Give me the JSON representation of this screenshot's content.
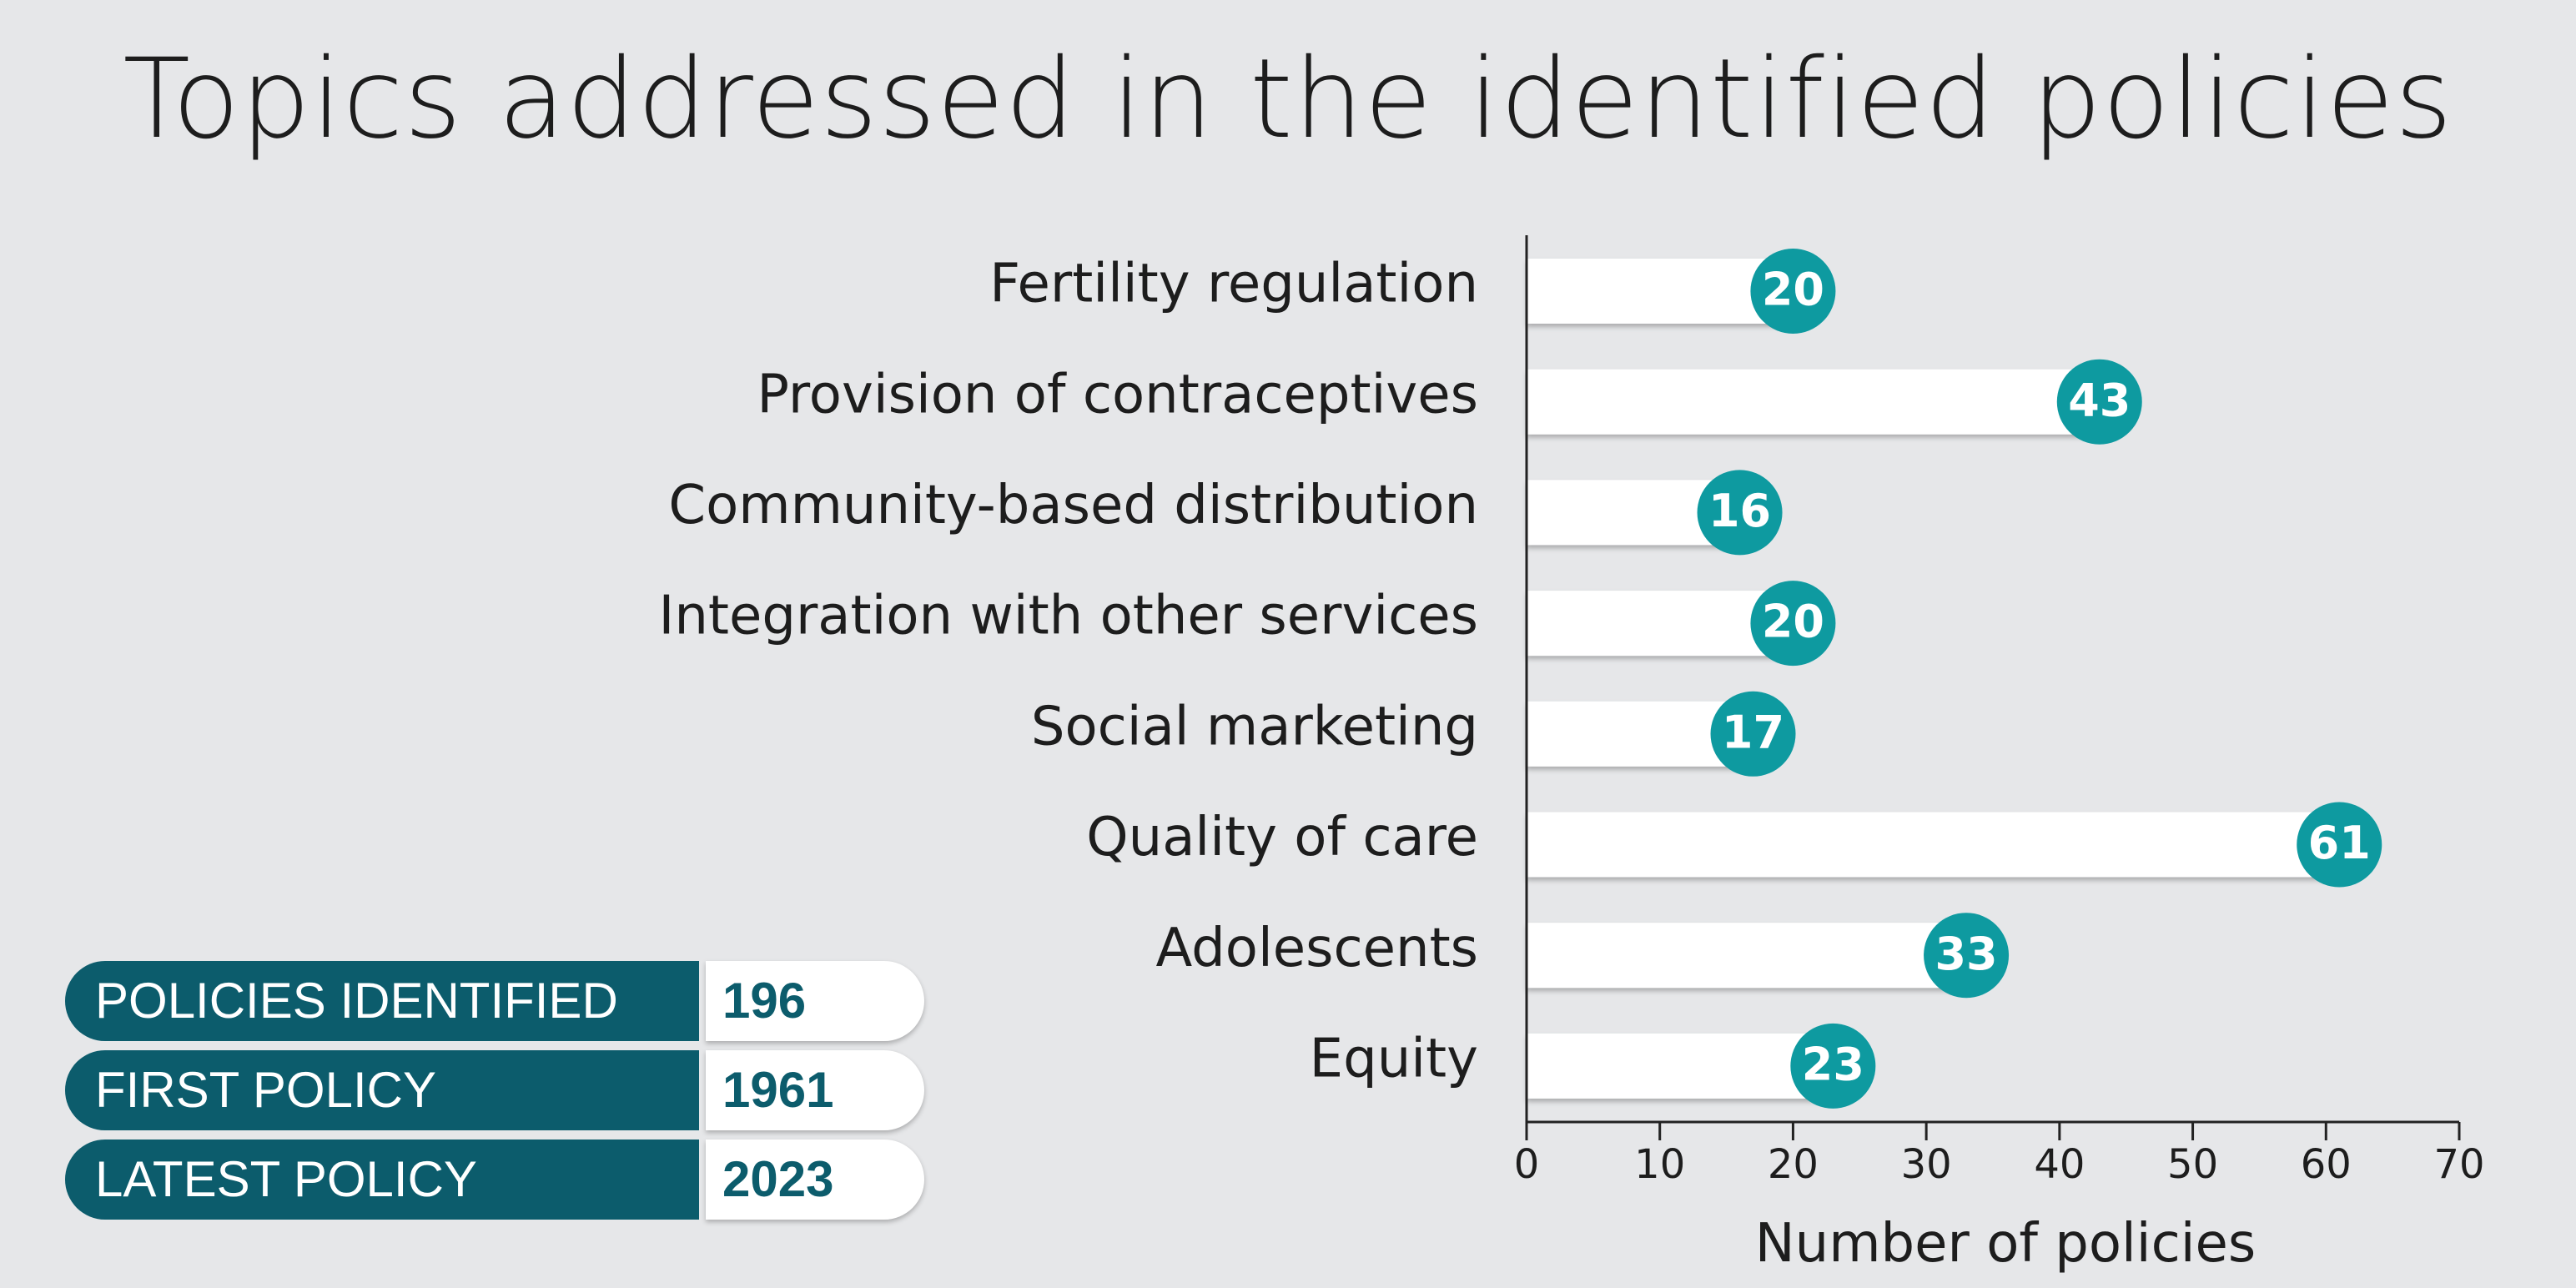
{
  "chart_data": {
    "type": "bar",
    "orientation": "horizontal",
    "title": "Topics addressed in the identified policies",
    "categories": [
      "Fertility regulation",
      "Provision of contraceptives",
      "Community-based distribution",
      "Integration with other services",
      "Social marketing",
      "Quality of care",
      "Adolescents",
      "Equity"
    ],
    "values": [
      20,
      43,
      16,
      20,
      17,
      61,
      33,
      23
    ],
    "xlabel": "Number of policies",
    "xlim": [
      0,
      70
    ],
    "xticks": [
      "0",
      "10",
      "20",
      "30",
      "40",
      "50",
      "60",
      "70"
    ],
    "grid": false,
    "bar_color": "#ffffff",
    "marker_color": "#0e9aa0"
  },
  "stats": [
    {
      "label": "POLICIES IDENTIFIED",
      "value": "196"
    },
    {
      "label": "FIRST POLICY",
      "value": "1961"
    },
    {
      "label": "LATEST POLICY",
      "value": "2023"
    }
  ],
  "colors": {
    "background": "#e6e7e9",
    "dark_teal": "#0c5c6c",
    "teal": "#0e9aa0",
    "text": "#1d1d1d"
  }
}
